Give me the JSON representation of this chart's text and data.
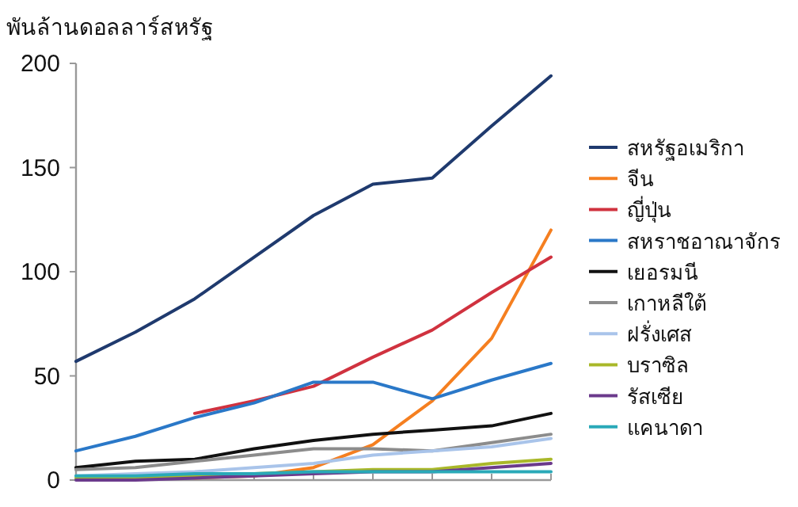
{
  "chart_data": {
    "type": "line",
    "ylabel": "พันล้านดอลลาร์สหรัฐ",
    "categories": [
      null,
      null,
      null,
      null,
      null,
      null,
      null,
      null,
      null
    ],
    "ylim": [
      0,
      200
    ],
    "yticks": [
      0,
      50,
      100,
      150,
      200
    ],
    "grid": false,
    "legend": "right",
    "marker": "none",
    "line_style": "solid",
    "series": [
      {
        "name": "สหรัฐอเมริกา",
        "color": "#1f3a6e",
        "values": [
          57,
          71,
          87,
          107,
          127,
          142,
          145,
          170,
          194
        ]
      },
      {
        "name": "จีน",
        "color": "#f57f20",
        "values": [
          null,
          null,
          1,
          2,
          6,
          17,
          38,
          68,
          120
        ]
      },
      {
        "name": "ญี่ปุ่น",
        "color": "#d0323f",
        "values": [
          null,
          null,
          32,
          38,
          45,
          59,
          72,
          90,
          107
        ]
      },
      {
        "name": "สหราชอาณาจักร",
        "color": "#2a78c8",
        "values": [
          14,
          21,
          30,
          37,
          47,
          47,
          39,
          48,
          56
        ]
      },
      {
        "name": "เยอรมนี",
        "color": "#111111",
        "values": [
          6,
          9,
          10,
          15,
          19,
          22,
          24,
          26,
          32
        ]
      },
      {
        "name": "เกาหลีใต้",
        "color": "#8c8c8c",
        "values": [
          5,
          6,
          9,
          12,
          15,
          15,
          14,
          18,
          22
        ]
      },
      {
        "name": "ฝรั่งเศส",
        "color": "#a9c4ea",
        "values": [
          2,
          3,
          4,
          6,
          8,
          12,
          14,
          16,
          20
        ]
      },
      {
        "name": "บราซิล",
        "color": "#a9b829",
        "values": [
          1,
          1,
          2,
          3,
          4,
          5,
          5,
          8,
          10
        ]
      },
      {
        "name": "รัสเซีย",
        "color": "#6b3a8c",
        "values": [
          0,
          0,
          1,
          2,
          3,
          4,
          4,
          6,
          8
        ]
      },
      {
        "name": "แคนาดา",
        "color": "#2aa9b8",
        "values": [
          2,
          2,
          3,
          3,
          4,
          4,
          4,
          4,
          4
        ]
      }
    ]
  }
}
